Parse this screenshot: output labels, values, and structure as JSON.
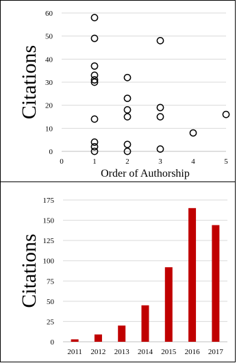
{
  "chart_data": [
    {
      "type": "scatter",
      "title": "",
      "xlabel": "Order of Authorship",
      "ylabel": "Citations",
      "xlim": [
        0,
        5
      ],
      "ylim": [
        0,
        60
      ],
      "xticks": [
        "0",
        "1",
        "2",
        "3",
        "4",
        "5"
      ],
      "yticks": [
        "0",
        "10",
        "20",
        "30",
        "40",
        "50",
        "60"
      ],
      "grid": "horizontal",
      "marker": "open-circle",
      "points": [
        {
          "x": 1,
          "y": 58
        },
        {
          "x": 1,
          "y": 49
        },
        {
          "x": 1,
          "y": 37
        },
        {
          "x": 1,
          "y": 33
        },
        {
          "x": 1,
          "y": 31
        },
        {
          "x": 1,
          "y": 30
        },
        {
          "x": 1,
          "y": 14
        },
        {
          "x": 1,
          "y": 4
        },
        {
          "x": 1,
          "y": 2
        },
        {
          "x": 1,
          "y": 0
        },
        {
          "x": 2,
          "y": 32
        },
        {
          "x": 2,
          "y": 23
        },
        {
          "x": 2,
          "y": 18
        },
        {
          "x": 2,
          "y": 15
        },
        {
          "x": 2,
          "y": 3
        },
        {
          "x": 2,
          "y": 0
        },
        {
          "x": 3,
          "y": 48
        },
        {
          "x": 3,
          "y": 19
        },
        {
          "x": 3,
          "y": 15
        },
        {
          "x": 3,
          "y": 1
        },
        {
          "x": 4,
          "y": 8
        },
        {
          "x": 5,
          "y": 16
        }
      ]
    },
    {
      "type": "bar",
      "title": "",
      "xlabel": "",
      "ylabel": "Citations",
      "categories": [
        "2011",
        "2012",
        "2013",
        "2014",
        "2015",
        "2016",
        "2017"
      ],
      "values": [
        3,
        9,
        20,
        45,
        92,
        165,
        144
      ],
      "ylim": [
        0,
        175
      ],
      "yticks": [
        "0",
        "25",
        "50",
        "75",
        "100",
        "125",
        "150",
        "175"
      ],
      "grid": "horizontal",
      "bar_color": "#c00000"
    }
  ]
}
